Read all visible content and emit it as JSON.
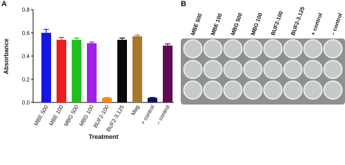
{
  "chart_data": {
    "type": "bar",
    "panel_label": "A",
    "y_label": "Absorbance",
    "x_label": "Treatment",
    "categories": [
      "MBE 500",
      "MBE 100",
      "MBG 500",
      "MBG 100",
      "BUF2-100",
      "BUF2-3.125",
      "Mag",
      "+ control",
      "– control"
    ],
    "values": [
      0.6,
      0.54,
      0.54,
      0.51,
      0.04,
      0.54,
      0.57,
      0.04,
      0.49
    ],
    "errors": [
      0.03,
      0.02,
      0.015,
      0.01,
      0.003,
      0.015,
      0.01,
      0.003,
      0.015
    ],
    "colors": [
      "#1515e6",
      "#ee1c1c",
      "#22c01e",
      "#a020e8",
      "#f58a12",
      "#0a0a0a",
      "#a8772c",
      "#0c0c6e",
      "#5c0c52"
    ],
    "ylim": [
      0,
      0.8
    ],
    "yticks": [
      {
        "value": 0,
        "label": "0.0"
      },
      0.2,
      0.4,
      0.6,
      0.8
    ]
  },
  "photo": {
    "panel_label": "B",
    "column_labels": [
      "MBE 500",
      "MBE 100",
      "MBG 500",
      "MBG 100",
      "BUF2-100",
      "BUF2-3.125",
      "+ control",
      "– control"
    ]
  }
}
